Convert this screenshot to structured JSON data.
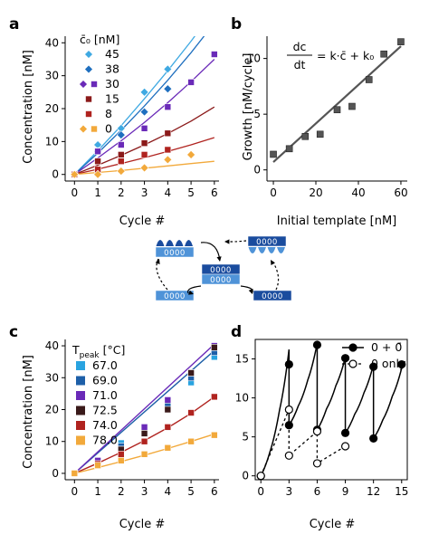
{
  "panels": [
    {
      "letter": "a"
    },
    {
      "letter": "b"
    },
    {
      "letter": "c"
    },
    {
      "letter": "d"
    }
  ],
  "chart_data": [
    {
      "panel": "a",
      "type": "scatter",
      "xlabel": "Cycle #",
      "ylabel": "Concentration [nM]",
      "xlim": [
        -0.4,
        6.2
      ],
      "ylim": [
        -2,
        42
      ],
      "xticks": [
        0,
        1,
        2,
        3,
        4,
        5,
        6
      ],
      "yticks": [
        0,
        10,
        20,
        30,
        40
      ],
      "legend_title": "c̄₀ [nM]",
      "legend_position": "top-left",
      "series": [
        {
          "name": "45",
          "color": "#3fa9e2",
          "marker": "diamond",
          "x": [
            0,
            1,
            2,
            3,
            4
          ],
          "y": [
            0,
            9,
            14,
            25,
            32
          ],
          "fit": [
            [
              0,
              0
            ],
            [
              1,
              7.2
            ],
            [
              2,
              14.8
            ],
            [
              3,
              23.0
            ],
            [
              4,
              31.5
            ],
            [
              5,
              40.5
            ],
            [
              6,
              50
            ]
          ]
        },
        {
          "name": "38",
          "color": "#1f6fbf",
          "marker": "diamond",
          "x": [
            0,
            1,
            2,
            3,
            4
          ],
          "y": [
            0,
            7,
            12,
            19,
            26
          ],
          "fit": [
            [
              0,
              0
            ],
            [
              1,
              6.5
            ],
            [
              2,
              13.4
            ],
            [
              3,
              20.8
            ],
            [
              4,
              28.6
            ],
            [
              5,
              37.0
            ],
            [
              6,
              46
            ]
          ]
        },
        {
          "name": "30",
          "color": "#6a2ab8",
          "marker": "square",
          "x": [
            0,
            1,
            2,
            3,
            4,
            5,
            6
          ],
          "y": [
            0,
            7,
            9,
            14,
            20.5,
            28,
            36.5
          ],
          "fit": [
            [
              0,
              0
            ],
            [
              1,
              5.0
            ],
            [
              2,
              10.2
            ],
            [
              3,
              15.8
            ],
            [
              4,
              21.8
            ],
            [
              5,
              28.2
            ],
            [
              6,
              35
            ]
          ]
        },
        {
          "name": "15",
          "color": "#8b1a1a",
          "marker": "square",
          "x": [
            0,
            1,
            2,
            3,
            4
          ],
          "y": [
            0,
            4,
            6,
            9.5,
            12.5
          ],
          "fit": [
            [
              0,
              0
            ],
            [
              1,
              2.8
            ],
            [
              2,
              5.8
            ],
            [
              3,
              9.0
            ],
            [
              4,
              12.4
            ],
            [
              5,
              16.2
            ],
            [
              6,
              20.5
            ]
          ]
        },
        {
          "name": "8",
          "color": "#b0231f",
          "marker": "square",
          "x": [
            0,
            1,
            2,
            3,
            4
          ],
          "y": [
            0,
            1.5,
            4,
            6,
            7.5
          ],
          "fit": [
            [
              0,
              0
            ],
            [
              1,
              1.6
            ],
            [
              2,
              3.3
            ],
            [
              3,
              5.1
            ],
            [
              4,
              7.0
            ],
            [
              5,
              9.0
            ],
            [
              6,
              11.2
            ]
          ]
        },
        {
          "name": "0",
          "color": "#f2a93b",
          "marker": "diamond",
          "x": [
            0,
            1,
            2,
            3,
            4,
            5
          ],
          "y": [
            0,
            0,
            1,
            2,
            4.5,
            6
          ],
          "fit": [
            [
              0,
              0
            ],
            [
              1,
              0.6
            ],
            [
              2,
              1.2
            ],
            [
              3,
              1.9
            ],
            [
              4,
              2.6
            ],
            [
              5,
              3.3
            ],
            [
              6,
              4.0
            ]
          ]
        }
      ]
    },
    {
      "panel": "b",
      "type": "scatter",
      "xlabel": "Initial template [nM]",
      "ylabel": "Growth [nM/cycle]",
      "xlim": [
        -3,
        63
      ],
      "ylim": [
        -1,
        12
      ],
      "xticks": [
        0,
        20,
        40,
        60
      ],
      "yticks": [
        0,
        5,
        10
      ],
      "annotation": {
        "numerator": "dc",
        "denominator": "dt",
        "rhs": "= k·c̄ + k₀"
      },
      "series": [
        {
          "name": "",
          "color": "#555555",
          "marker": "square",
          "x": [
            0,
            7.5,
            15,
            22,
            30,
            37,
            45,
            52,
            60
          ],
          "y": [
            1.4,
            1.9,
            3.0,
            3.2,
            5.4,
            5.7,
            8.1,
            10.4,
            11.5
          ]
        }
      ],
      "fit": [
        [
          0,
          0.7
        ],
        [
          60,
          11.1
        ]
      ]
    },
    {
      "panel": "c",
      "type": "scatter",
      "xlabel": "Cycle #",
      "ylabel": "Concentration [nM]",
      "xlim": [
        -0.4,
        6.2
      ],
      "ylim": [
        -2,
        42
      ],
      "xticks": [
        0,
        1,
        2,
        3,
        4,
        5,
        6
      ],
      "yticks": [
        0,
        10,
        20,
        30,
        40
      ],
      "legend_title": "T",
      "legend_title_sub": "peak",
      "legend_title_rest": " [°C]",
      "legend_position": "top-left",
      "series": [
        {
          "name": "67.0",
          "color": "#29a3e0",
          "marker": "square",
          "x": [
            0,
            1,
            2,
            3,
            4,
            5,
            6
          ],
          "y": [
            0,
            3.5,
            9.5,
            14.5,
            22.5,
            28.5,
            36.5
          ]
        },
        {
          "name": "69.0",
          "color": "#1d5fa8",
          "marker": "square",
          "x": [
            0,
            1,
            2,
            3,
            4,
            5,
            6
          ],
          "y": [
            0,
            3.5,
            8.5,
            13.5,
            21.5,
            30,
            38
          ]
        },
        {
          "name": "71.0",
          "color": "#6a2ab8",
          "marker": "square",
          "x": [
            0,
            1,
            2,
            3,
            4,
            5,
            6
          ],
          "y": [
            0,
            4,
            7.5,
            14.5,
            23,
            31.5,
            40
          ]
        },
        {
          "name": "72.5",
          "color": "#3a1a1a",
          "marker": "square",
          "x": [
            0,
            1,
            2,
            3,
            4,
            5,
            6
          ],
          "y": [
            0,
            2.5,
            7.5,
            12.5,
            20,
            31.5,
            39.5
          ]
        },
        {
          "name": "74.0",
          "color": "#b0231f",
          "marker": "square",
          "x": [
            0,
            1,
            2,
            3,
            4,
            5,
            6
          ],
          "y": [
            0,
            3,
            6,
            10,
            14.5,
            19,
            24
          ]
        },
        {
          "name": "78.0",
          "color": "#f2a93b",
          "marker": "square",
          "x": [
            0,
            1,
            2,
            3,
            4,
            5,
            6
          ],
          "y": [
            0,
            2.5,
            4,
            6,
            8,
            10,
            12
          ]
        }
      ],
      "fits": [
        {
          "color": "#1d5fa8",
          "points": [
            [
              0,
              0
            ],
            [
              6,
              38.5
            ]
          ]
        },
        {
          "color": "#6a2ab8",
          "points": [
            [
              0,
              0
            ],
            [
              6,
              40.5
            ]
          ]
        },
        {
          "color": "#b0231f",
          "points": [
            [
              0,
              0
            ],
            [
              1,
              3.2
            ],
            [
              2,
              6.6
            ],
            [
              3,
              10.3
            ],
            [
              4,
              14.3
            ],
            [
              5,
              18.8
            ],
            [
              6,
              24
            ]
          ]
        },
        {
          "color": "#f2a93b",
          "points": [
            [
              0,
              0
            ],
            [
              1,
              1.8
            ],
            [
              2,
              3.7
            ],
            [
              3,
              5.7
            ],
            [
              4,
              7.8
            ],
            [
              5,
              10
            ],
            [
              6,
              12.3
            ]
          ]
        }
      ]
    },
    {
      "panel": "d",
      "type": "line",
      "xlabel": "Cycle #",
      "ylabel": "",
      "xlim": [
        -0.6,
        15.6
      ],
      "ylim": [
        -0.5,
        17.5
      ],
      "xticks": [
        0,
        3,
        6,
        9,
        12,
        15
      ],
      "yticks": [
        0,
        5,
        10,
        15
      ],
      "legend_position": "top-right",
      "series": [
        {
          "name": "0 + 0̄",
          "style": "filled",
          "x": [
            0,
            3,
            3,
            6,
            6,
            9,
            9,
            12,
            12,
            15
          ],
          "y": [
            0,
            14.3,
            6.5,
            16.8,
            5.9,
            15.1,
            5.5,
            14.0,
            4.8,
            14.3
          ],
          "sawtooth": [
            [
              [
                0,
                0
              ],
              [
                1,
                3.2
              ],
              [
                2,
                8.5
              ],
              [
                3,
                16.2
              ]
            ],
            [
              [
                3,
                6.5
              ],
              [
                4,
                9.0
              ],
              [
                5,
                12.3
              ],
              [
                6,
                17.0
              ]
            ],
            [
              [
                6,
                5.9
              ],
              [
                7,
                8.6
              ],
              [
                8,
                11.6
              ],
              [
                9,
                15.2
              ]
            ],
            [
              [
                9,
                5.5
              ],
              [
                10,
                7.9
              ],
              [
                11,
                10.7
              ],
              [
                12,
                14.3
              ]
            ],
            [
              [
                12,
                4.8
              ],
              [
                13,
                7.2
              ],
              [
                14,
                10.2
              ],
              [
                15,
                13.8
              ]
            ]
          ],
          "drops": [
            [
              3,
              16.2,
              6.5
            ],
            [
              6,
              17.0,
              5.9
            ],
            [
              9,
              15.2,
              5.5
            ],
            [
              12,
              14.3,
              4.8
            ]
          ]
        },
        {
          "name": "0 only",
          "style": "open",
          "x": [
            0,
            3,
            3,
            6,
            6,
            9
          ],
          "y": [
            0,
            8.5,
            2.6,
            5.7,
            1.6,
            3.8
          ]
        }
      ]
    }
  ],
  "schematic": {
    "monomer_label": "0000",
    "colors": {
      "light": "#4f93d8",
      "mid": "#3479c6",
      "dark": "#1a4c9e"
    }
  }
}
